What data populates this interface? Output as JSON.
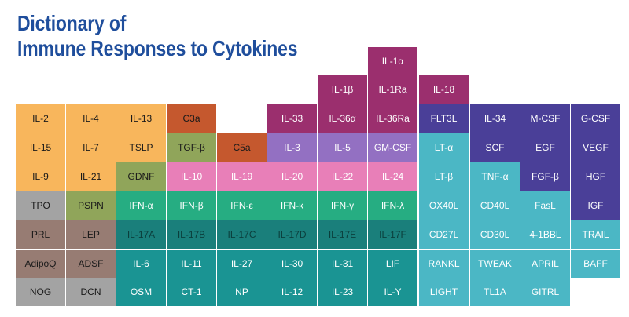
{
  "title": {
    "line1": "Dictionary of",
    "line2": "Immune Responses to Cytokines"
  },
  "colors": {
    "orange": "#f8b65c",
    "olive": "#90a55a",
    "rust": "#c5582e",
    "magenta": "#9b2f6e",
    "purple_light": "#9370c2",
    "purple_mid": "#8672c0",
    "pink": "#e87fb8",
    "green": "#26ad82",
    "teal_dark": "#1a7f7b",
    "teal_mid": "#1a9493",
    "aqua": "#4bb7c5",
    "indigo": "#4a3f98",
    "gray": "#a3a3a3",
    "taupe": "#977c73",
    "text_dark": "#1a1a1a",
    "text_light": "#ffffff",
    "title_blue": "#1f4e9c"
  },
  "rows": [
    [
      null,
      null,
      null,
      null,
      null,
      null,
      null,
      {
        "label": "IL-1α",
        "color": "magenta"
      },
      null,
      null,
      null,
      null
    ],
    [
      null,
      null,
      null,
      null,
      null,
      null,
      {
        "label": "IL-1β",
        "color": "magenta"
      },
      {
        "label": "IL-1Ra",
        "color": "magenta"
      },
      {
        "label": "IL-18",
        "color": "magenta"
      },
      null,
      null,
      null
    ],
    [
      {
        "label": "IL-2",
        "color": "orange"
      },
      {
        "label": "IL-4",
        "color": "orange"
      },
      {
        "label": "IL-13",
        "color": "orange"
      },
      {
        "label": "C3a",
        "color": "rust"
      },
      null,
      {
        "label": "IL-33",
        "color": "magenta"
      },
      {
        "label": "IL-36α",
        "color": "magenta"
      },
      {
        "label": "IL-36Ra",
        "color": "magenta"
      },
      {
        "label": "FLT3L",
        "color": "indigo"
      },
      {
        "label": "IL-34",
        "color": "indigo"
      },
      {
        "label": "M-CSF",
        "color": "indigo"
      },
      {
        "label": "G-CSF",
        "color": "indigo"
      }
    ],
    [
      {
        "label": "IL-15",
        "color": "orange"
      },
      {
        "label": "IL-7",
        "color": "orange"
      },
      {
        "label": "TSLP",
        "color": "orange"
      },
      {
        "label": "TGF-β",
        "color": "olive"
      },
      {
        "label": "C5a",
        "color": "rust"
      },
      {
        "label": "IL-3",
        "color": "purple_light"
      },
      {
        "label": "IL-5",
        "color": "purple_light"
      },
      {
        "label": "GM-CSF",
        "color": "purple_light"
      },
      {
        "label": "LT-α",
        "color": "aqua"
      },
      {
        "label": "SCF",
        "color": "indigo"
      },
      {
        "label": "EGF",
        "color": "indigo"
      },
      {
        "label": "VEGF",
        "color": "indigo"
      }
    ],
    [
      {
        "label": "IL-9",
        "color": "orange"
      },
      {
        "label": "IL-21",
        "color": "orange"
      },
      {
        "label": "GDNF",
        "color": "olive"
      },
      {
        "label": "IL-10",
        "color": "pink"
      },
      {
        "label": "IL-19",
        "color": "pink"
      },
      {
        "label": "IL-20",
        "color": "pink"
      },
      {
        "label": "IL-22",
        "color": "pink"
      },
      {
        "label": "IL-24",
        "color": "pink"
      },
      {
        "label": "LT-β",
        "color": "aqua"
      },
      {
        "label": "TNF-α",
        "color": "aqua"
      },
      {
        "label": "FGF-β",
        "color": "indigo"
      },
      {
        "label": "HGF",
        "color": "indigo"
      }
    ],
    [
      {
        "label": "TPO",
        "color": "gray"
      },
      {
        "label": "PSPN",
        "color": "olive"
      },
      {
        "label": "IFN-α",
        "color": "green"
      },
      {
        "label": "IFN-β",
        "color": "green"
      },
      {
        "label": "IFN-ε",
        "color": "green"
      },
      {
        "label": "IFN-κ",
        "color": "green"
      },
      {
        "label": "IFN-γ",
        "color": "green"
      },
      {
        "label": "IFN-λ",
        "color": "green"
      },
      {
        "label": "OX40L",
        "color": "aqua"
      },
      {
        "label": "CD40L",
        "color": "aqua"
      },
      {
        "label": "FasL",
        "color": "aqua"
      },
      {
        "label": "IGF",
        "color": "indigo"
      }
    ],
    [
      {
        "label": "PRL",
        "color": "taupe"
      },
      {
        "label": "LEP",
        "color": "taupe"
      },
      {
        "label": "IL-17A",
        "color": "teal_dark"
      },
      {
        "label": "IL-17B",
        "color": "teal_dark"
      },
      {
        "label": "IL-17C",
        "color": "teal_dark"
      },
      {
        "label": "IL-17D",
        "color": "teal_dark"
      },
      {
        "label": "IL-17E",
        "color": "teal_dark"
      },
      {
        "label": "IL-17F",
        "color": "teal_dark"
      },
      {
        "label": "CD27L",
        "color": "aqua"
      },
      {
        "label": "CD30L",
        "color": "aqua"
      },
      {
        "label": "4-1BBL",
        "color": "aqua"
      },
      {
        "label": "TRAIL",
        "color": "aqua"
      }
    ],
    [
      {
        "label": "AdipoQ",
        "color": "taupe"
      },
      {
        "label": "ADSF",
        "color": "taupe"
      },
      {
        "label": "IL-6",
        "color": "teal_mid"
      },
      {
        "label": "IL-11",
        "color": "teal_mid"
      },
      {
        "label": "IL-27",
        "color": "teal_mid"
      },
      {
        "label": "IL-30",
        "color": "teal_mid"
      },
      {
        "label": "IL-31",
        "color": "teal_mid"
      },
      {
        "label": "LIF",
        "color": "teal_mid"
      },
      {
        "label": "RANKL",
        "color": "aqua"
      },
      {
        "label": "TWEAK",
        "color": "aqua"
      },
      {
        "label": "APRIL",
        "color": "aqua"
      },
      {
        "label": "BAFF",
        "color": "aqua"
      }
    ],
    [
      {
        "label": "NOG",
        "color": "gray"
      },
      {
        "label": "DCN",
        "color": "gray"
      },
      {
        "label": "OSM",
        "color": "teal_mid"
      },
      {
        "label": "CT-1",
        "color": "teal_mid"
      },
      {
        "label": "NP",
        "color": "teal_mid"
      },
      {
        "label": "IL-12",
        "color": "teal_mid"
      },
      {
        "label": "IL-23",
        "color": "teal_mid"
      },
      {
        "label": "IL-Y",
        "color": "teal_mid"
      },
      {
        "label": "LIGHT",
        "color": "aqua"
      },
      {
        "label": "TL1A",
        "color": "aqua"
      },
      {
        "label": "GITRL",
        "color": "aqua"
      },
      null
    ]
  ]
}
